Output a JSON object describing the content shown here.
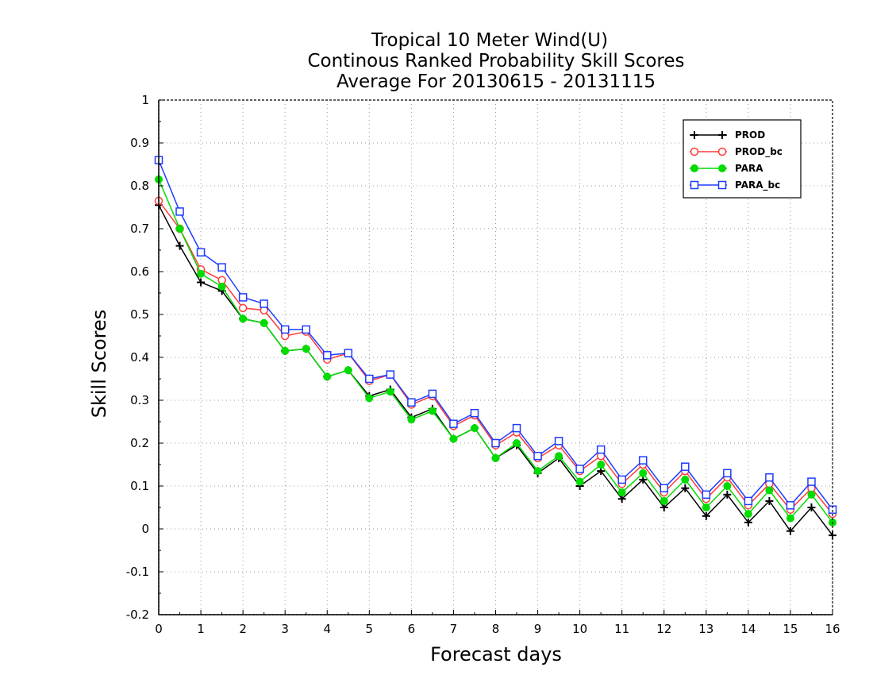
{
  "chart_data": {
    "type": "line",
    "title": [
      "Tropical 10 Meter Wind(U)",
      "Continous Ranked Probability Skill Scores",
      "Average For 20130615 - 20131115"
    ],
    "xlabel": "Forecast days",
    "ylabel": "Skill Scores",
    "xlim": [
      0,
      16
    ],
    "ylim": [
      -0.2,
      1
    ],
    "x_ticks": [
      "0",
      "1",
      "2",
      "3",
      "4",
      "5",
      "6",
      "7",
      "8",
      "9",
      "10",
      "11",
      "12",
      "13",
      "14",
      "15",
      "16"
    ],
    "y_ticks": [
      "-0.2",
      "-0.1",
      "0",
      "0.1",
      "0.2",
      "0.3",
      "0.4",
      "0.5",
      "0.6",
      "0.7",
      "0.8",
      "0.9",
      "1"
    ],
    "grid": true,
    "legend_position": "top-right",
    "x": [
      0,
      0.5,
      1,
      1.5,
      2,
      2.5,
      3,
      3.5,
      4,
      4.5,
      5,
      5.5,
      6,
      6.5,
      7,
      7.5,
      8,
      8.5,
      9,
      9.5,
      10,
      10.5,
      11,
      11.5,
      12,
      12.5,
      13,
      13.5,
      14,
      14.5,
      15,
      15.5,
      16
    ],
    "series": [
      {
        "name": "PROD",
        "color": "#000000",
        "marker": "plus",
        "values": [
          0.755,
          0.66,
          0.575,
          0.555,
          0.49,
          0.48,
          0.415,
          0.42,
          0.355,
          0.37,
          0.31,
          0.325,
          0.26,
          0.28,
          0.21,
          0.235,
          0.165,
          0.195,
          0.13,
          0.165,
          0.1,
          0.135,
          0.07,
          0.115,
          0.05,
          0.095,
          0.03,
          0.08,
          0.015,
          0.065,
          -0.005,
          0.05,
          -0.015
        ]
      },
      {
        "name": "PROD_bc",
        "color": "#ff3c3c",
        "marker": "circle-open",
        "values": [
          0.765,
          0.7,
          0.605,
          0.58,
          0.515,
          0.51,
          0.45,
          0.46,
          0.395,
          0.41,
          0.345,
          0.36,
          0.29,
          0.31,
          0.24,
          0.265,
          0.195,
          0.225,
          0.165,
          0.195,
          0.135,
          0.17,
          0.105,
          0.15,
          0.085,
          0.135,
          0.07,
          0.12,
          0.055,
          0.105,
          0.045,
          0.095,
          0.035
        ]
      },
      {
        "name": "PARA",
        "color": "#00dc00",
        "marker": "circle-filled",
        "values": [
          0.815,
          0.7,
          0.595,
          0.565,
          0.49,
          0.48,
          0.415,
          0.42,
          0.355,
          0.37,
          0.305,
          0.32,
          0.255,
          0.275,
          0.21,
          0.235,
          0.165,
          0.2,
          0.135,
          0.17,
          0.11,
          0.15,
          0.085,
          0.13,
          0.065,
          0.115,
          0.05,
          0.1,
          0.035,
          0.09,
          0.025,
          0.08,
          0.015
        ]
      },
      {
        "name": "PARA_bc",
        "color": "#1e3cff",
        "marker": "square-open",
        "values": [
          0.86,
          0.74,
          0.645,
          0.61,
          0.54,
          0.525,
          0.465,
          0.465,
          0.405,
          0.41,
          0.35,
          0.36,
          0.295,
          0.315,
          0.245,
          0.27,
          0.2,
          0.235,
          0.17,
          0.205,
          0.14,
          0.185,
          0.115,
          0.16,
          0.095,
          0.145,
          0.08,
          0.13,
          0.065,
          0.12,
          0.055,
          0.11,
          0.045
        ]
      }
    ]
  }
}
